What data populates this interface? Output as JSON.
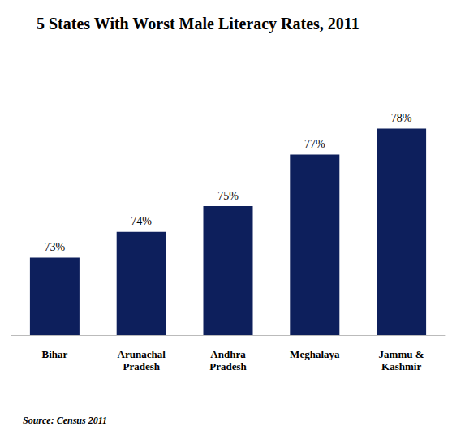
{
  "chart_data": {
    "type": "bar",
    "title": "5 States With Worst Male Literacy Rates, 2011",
    "categories": [
      "Bihar",
      "Arunachal Pradesh",
      "Andhra Pradesh",
      "Meghalaya",
      "Jammu & Kashmir"
    ],
    "values": [
      73,
      74,
      75,
      77,
      78
    ],
    "value_labels": [
      "73%",
      "74%",
      "75%",
      "77%",
      "78%"
    ],
    "color": "#0d1f5c",
    "ylim": [
      70,
      80
    ],
    "data_labels": true,
    "tick_labels": "x",
    "grid": false,
    "source": "Source: Census 2011"
  }
}
